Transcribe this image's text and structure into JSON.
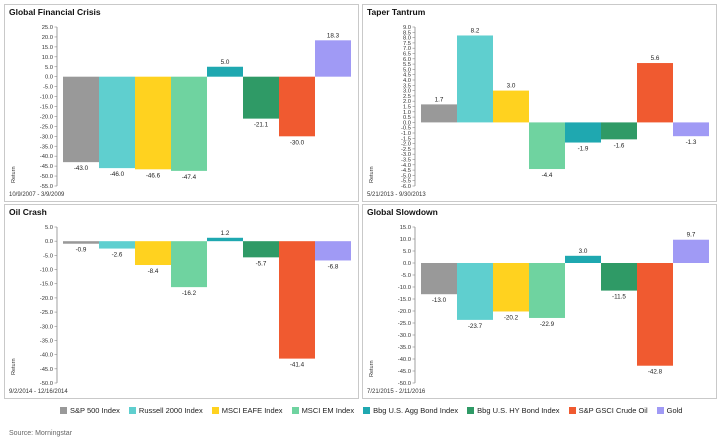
{
  "legend": [
    {
      "label": "S&P 500 Index",
      "color": "#999999"
    },
    {
      "label": "Russell 2000 Index",
      "color": "#5fcfcf"
    },
    {
      "label": "MSCI EAFE Index",
      "color": "#ffd21f"
    },
    {
      "label": "MSCI EM Index",
      "color": "#6fd3a0"
    },
    {
      "label": "Bbg U.S. Agg Bond Index",
      "color": "#1fa8b0"
    },
    {
      "label": "Bbg U.S. HY Bond Index",
      "color": "#2f9a66"
    },
    {
      "label": "S&P GSCI Crude Oil",
      "color": "#f05a30"
    },
    {
      "label": "Gold",
      "color": "#a09af5"
    }
  ],
  "source": "Source: Morningstar",
  "chart_data": [
    {
      "type": "bar",
      "title": "Global Financial Crisis",
      "period": "10/9/2007 - 3/9/2009",
      "ylabel": "Return",
      "ylim": [
        -55,
        25
      ],
      "ystep": 5,
      "tick_decimals": 1,
      "categories": [
        "S&P 500 Index",
        "Russell 2000 Index",
        "MSCI EAFE Index",
        "MSCI EM Index",
        "Bbg U.S. Agg Bond Index",
        "Bbg U.S. HY Bond Index",
        "S&P GSCI Crude Oil",
        "Gold"
      ],
      "values": [
        -43.0,
        -46.0,
        -46.6,
        -47.4,
        5.0,
        -21.1,
        -30.0,
        18.3
      ],
      "labels": [
        "-43.0",
        "-46.0",
        "-46.6",
        "-47.4",
        "5.0",
        "-21.1",
        "-30.0",
        "18.3"
      ]
    },
    {
      "type": "bar",
      "title": "Taper Tantrum",
      "period": "5/21/2013 - 9/30/2013",
      "ylabel": "Return",
      "ylim": [
        -6,
        9
      ],
      "ystep": 0.5,
      "tick_decimals": 1,
      "categories": [
        "S&P 500 Index",
        "Russell 2000 Index",
        "MSCI EAFE Index",
        "MSCI EM Index",
        "Bbg U.S. Agg Bond Index",
        "Bbg U.S. HY Bond Index",
        "S&P GSCI Crude Oil",
        "Gold"
      ],
      "values": [
        1.7,
        8.2,
        3.0,
        -4.4,
        -1.9,
        -1.6,
        5.6,
        -1.3
      ],
      "labels": [
        "1.7",
        "8.2",
        "3.0",
        "-4.4",
        "-1.9",
        "-1.6",
        "5.6",
        "-1.3"
      ]
    },
    {
      "type": "bar",
      "title": "Oil Crash",
      "period": "9/2/2014 - 12/16/2014",
      "ylabel": "Return",
      "ylim": [
        -50,
        5
      ],
      "ystep": 5,
      "tick_decimals": 1,
      "categories": [
        "S&P 500 Index",
        "Russell 2000 Index",
        "MSCI EAFE Index",
        "MSCI EM Index",
        "Bbg U.S. Agg Bond Index",
        "Bbg U.S. HY Bond Index",
        "S&P GSCI Crude Oil",
        "Gold"
      ],
      "values": [
        -0.9,
        -2.6,
        -8.4,
        -16.2,
        1.2,
        -5.7,
        -41.4,
        -6.8
      ],
      "labels": [
        "-0.9",
        "-2.6",
        "-8.4",
        "-16.2",
        "1.2",
        "-5.7",
        "-41.4",
        "-6.8"
      ]
    },
    {
      "type": "bar",
      "title": "Global Slowdown",
      "period": "7/21/2015 - 2/11/2016",
      "ylabel": "Return",
      "ylim": [
        -50,
        15
      ],
      "ystep": 5,
      "tick_decimals": 1,
      "categories": [
        "S&P 500 Index",
        "Russell 2000 Index",
        "MSCI EAFE Index",
        "MSCI EM Index",
        "Bbg U.S. Agg Bond Index",
        "Bbg U.S. HY Bond Index",
        "S&P GSCI Crude Oil",
        "Gold"
      ],
      "values": [
        -13.0,
        -23.7,
        -20.2,
        -22.9,
        3.0,
        -11.5,
        -42.8,
        9.7
      ],
      "labels": [
        "-13.0",
        "-23.7",
        "-20.2",
        "-22.9",
        "3.0",
        "-11.5",
        "-42.8",
        "9.7"
      ]
    }
  ]
}
